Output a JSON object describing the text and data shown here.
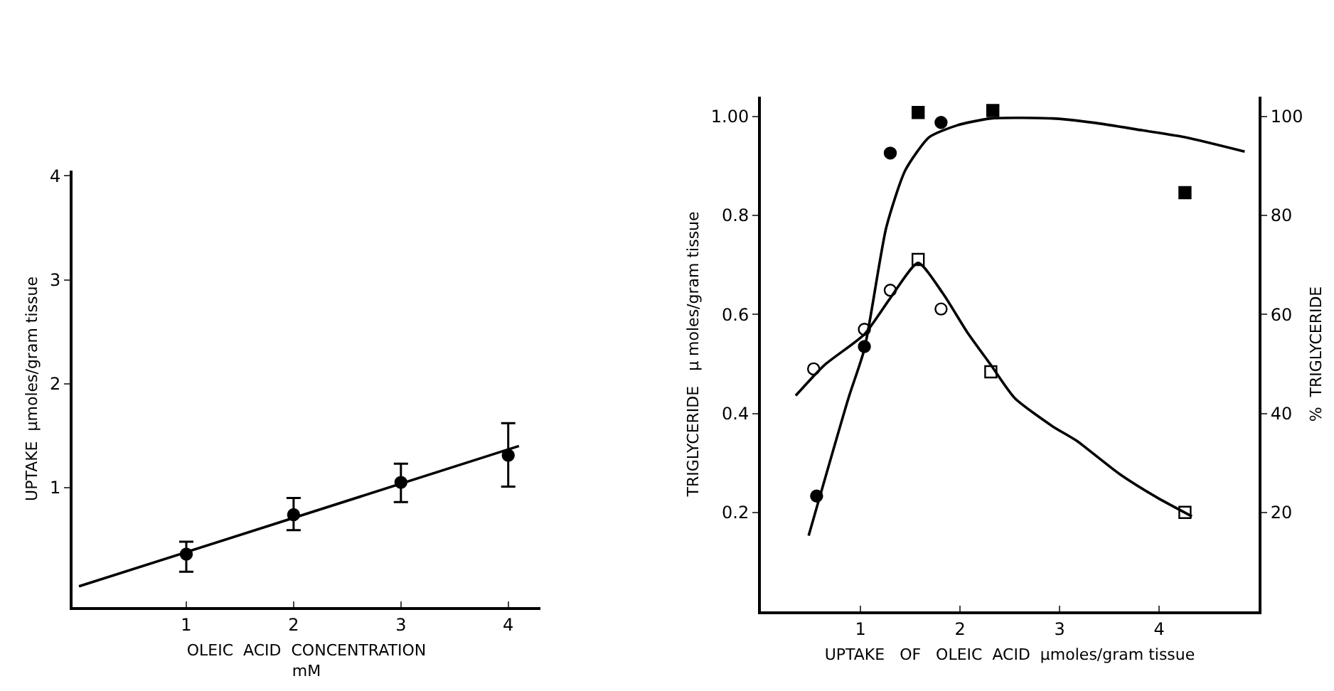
{
  "chart_data": [
    {
      "type": "scatter",
      "xlabel": "OLEIC  ACID  CONCENTRATION\nmM",
      "ylabel": "UPTAKE  µmoles/gram tissue",
      "xlim": [
        -0.06,
        4.3
      ],
      "ylim": [
        -0.15,
        4.05
      ],
      "xticks": [
        1,
        2,
        3,
        4
      ],
      "yticks": [
        1,
        2,
        3,
        4
      ],
      "grid": false,
      "series": [
        {
          "type": "scatter",
          "color": "#000000",
          "marker": "circle",
          "x": [
            1,
            2,
            3,
            4
          ],
          "values": [
            0.36,
            0.74,
            1.05,
            1.31
          ],
          "errors": [
            [
              0.19,
              0.48
            ],
            [
              0.59,
              0.9
            ],
            [
              0.86,
              1.23
            ],
            [
              1.01,
              1.62
            ]
          ]
        },
        {
          "type": "line",
          "color": "#000000",
          "marker": "none",
          "line_style": "solid",
          "x": [
            0,
            4.1
          ],
          "values": [
            0.05,
            1.4
          ]
        }
      ]
    },
    {
      "type": "scatter",
      "xlabel": "UPTAKE   OF   OLEIC  ACID  µmoles/gram tissue",
      "ylabel": "TRIGLYCERIDE   µ moles/gram tissue",
      "y2label": "%  TRIGLYCERIDE",
      "xlim": [
        0,
        5
      ],
      "ylim": [
        0,
        1.04
      ],
      "y2lim": [
        0,
        104
      ],
      "xticks": [
        1,
        2,
        3,
        4
      ],
      "yticks": [
        0.2,
        0.4,
        0.6,
        0.8,
        {
          "value": 1.0,
          "label": "1.00"
        }
      ],
      "y2ticks": [
        20,
        40,
        60,
        80,
        100
      ],
      "grid": false,
      "series": [
        {
          "type": "scatter",
          "color": "#000000",
          "marker": "circle",
          "x": [
            0.56,
            1.04,
            1.3,
            1.81
          ],
          "values": [
            0.233,
            0.535,
            0.926,
            0.988
          ]
        },
        {
          "type": "scatter",
          "color": "#000000",
          "marker": "square",
          "x": [
            1.58,
            2.33,
            4.26
          ],
          "values": [
            1.008,
            1.012,
            0.846
          ]
        },
        {
          "type": "scatter",
          "color": "#ffffff",
          "marker": "circle",
          "x": [
            0.53,
            1.04,
            1.3,
            1.81
          ],
          "values": [
            0.49,
            0.57,
            0.649,
            0.611
          ]
        },
        {
          "type": "scatter",
          "color": "#ffffff",
          "marker": "square",
          "x": [
            1.58,
            2.31,
            4.26
          ],
          "values": [
            0.711,
            0.484,
            0.2
          ]
        },
        {
          "type": "line",
          "color": "#000000",
          "marker": "none",
          "line_style": "solid",
          "x": [
            0.48,
            0.88,
            1.04,
            1.26,
            1.45,
            1.69,
            1.97,
            2.31,
            2.93,
            3.36,
            3.83,
            4.26,
            4.86
          ],
          "values": [
            0.153,
            0.431,
            0.53,
            0.776,
            0.891,
            0.958,
            0.982,
            0.996,
            0.996,
            0.987,
            0.972,
            0.958,
            0.929
          ]
        },
        {
          "type": "line",
          "color": "#000000",
          "marker": "none",
          "line_style": "solid",
          "x": [
            0.35,
            0.64,
            1.04,
            1.3,
            1.58,
            1.83,
            2.07,
            2.31,
            2.55,
            2.93,
            3.17,
            3.6,
            3.98,
            4.33
          ],
          "values": [
            0.436,
            0.498,
            0.56,
            0.633,
            0.704,
            0.642,
            0.565,
            0.498,
            0.431,
            0.374,
            0.345,
            0.278,
            0.23,
            0.192
          ]
        }
      ]
    }
  ]
}
